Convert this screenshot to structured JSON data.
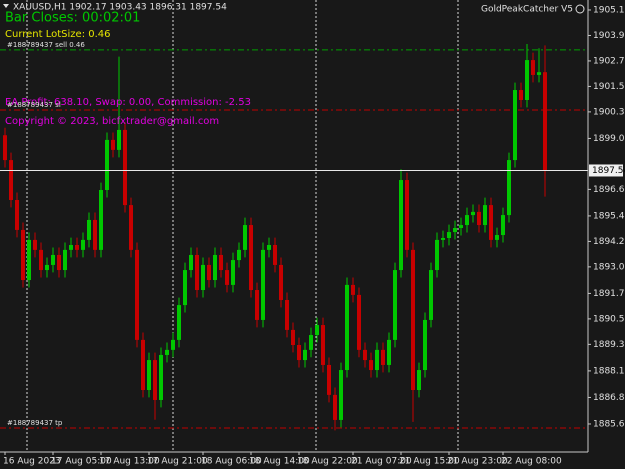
{
  "chart_data": {
    "type": "candlestick",
    "header": "XAUUSD,H1  1902.17 1903.43 1896.31 1897.54",
    "expert": "GoldPeakCatcher V5",
    "bar_closes": "Bar Closes: 00:02:01",
    "lot_size": "Current LotSize: 0.46",
    "profit": "EA Profit: 638.10, Swap: 0.00, Commission: -2.53",
    "copyright": "Copyright © 2023, bicfxtrader@gmail.com",
    "up_color": "#00c800",
    "down_color": "#c80000",
    "ylim": [
      1884.28,
      1905.57
    ],
    "yticks": [
      1905.1,
      1903.9,
      1902.7,
      1901.5,
      1900.3,
      {
        "value": 1899.05,
        "label": "1899.05"
      },
      {
        "value": 1896.65,
        "label": "1896.65"
      },
      1895.4,
      1894.2,
      {
        "value": 1893.0,
        "label": "1893.00"
      },
      {
        "value": 1891.75,
        "label": "1891.75"
      },
      {
        "value": 1890.55,
        "label": "1890.55"
      },
      {
        "value": 1889.35,
        "label": "1889.35"
      },
      1888.1,
      {
        "value": 1886.85,
        "label": "1886.85"
      },
      1885.6
    ],
    "xticks": [
      {
        "value": 0,
        "label": "16 Aug 2023"
      },
      {
        "value": 8,
        "label": "17 Aug 05:00"
      },
      {
        "value": 16,
        "label": "17 Aug 13:00"
      },
      {
        "value": 24,
        "label": "17 Aug 21:00"
      },
      {
        "value": 33,
        "label": "18 Aug 06:00"
      },
      {
        "value": 41,
        "label": "18 Aug 14:00"
      },
      {
        "value": 49,
        "label": "18 Aug 22:00"
      },
      {
        "value": 58,
        "label": "21 Aug 07:00"
      },
      {
        "value": 66,
        "label": "21 Aug 15:00"
      },
      {
        "value": 74,
        "label": "21 Aug 23:00"
      },
      {
        "value": 83,
        "label": "22 Aug 08:00"
      }
    ],
    "last": 1897.54,
    "levels": [
      {
        "label": "#188789437 sell 0.46",
        "value": 1903.22,
        "color": "#00a000"
      },
      {
        "label": "#188789437 sl",
        "value": 1900.39,
        "color": "#c00000"
      },
      {
        "label": "#188789437 tp",
        "value": 1885.41,
        "color": "#c00000"
      }
    ],
    "open": [
      1899.2,
      1898.03,
      1896.15,
      1894.74,
      1892.38,
      1894.27,
      1893.8,
      1892.85,
      1893.09,
      1893.56,
      1892.85,
      1893.8,
      1894.03,
      1893.8,
      1894.27,
      1895.21,
      1893.8,
      1896.62,
      1898.98,
      1898.51,
      1899.45,
      1895.91,
      1893.8,
      1889.56,
      1887.2,
      1888.61,
      1886.73,
      1888.85,
      1889.09,
      1889.56,
      1891.2,
      1892.85,
      1893.56,
      1891.91,
      1893.09,
      1892.38,
      1893.56,
      1892.85,
      1892.15,
      1893.32,
      1893.8,
      1894.97,
      1891.91,
      1890.5,
      1893.8,
      1894.03,
      1893.09,
      1891.44,
      1890.03,
      1889.32,
      1888.61,
      1889.09,
      1889.79,
      1890.26,
      1888.38,
      1886.97,
      1885.79,
      1888.14,
      1892.15,
      1891.68,
      1889.09,
      1888.61,
      1888.14,
      1889.09,
      1888.38,
      1889.56,
      1892.85,
      1897.09,
      1893.8,
      1887.2,
      1888.14,
      1890.5,
      1892.85,
      1894.27,
      1894.36,
      1894.64,
      1894.83,
      1894.97,
      1895.44,
      1895.59,
      1894.97,
      1895.91,
      1894.27,
      1894.5,
      1895.44,
      1898.03,
      1901.33,
      1900.86,
      1902.74,
      1902.04,
      1902.17
    ],
    "high": [
      1899.55,
      1898.38,
      1896.5,
      1895.09,
      1894.62,
      1894.62,
      1894.15,
      1893.44,
      1893.91,
      1893.91,
      1894.15,
      1894.38,
      1894.38,
      1894.62,
      1895.56,
      1895.56,
      1896.97,
      1899.33,
      1899.33,
      1902.9,
      1899.8,
      1896.26,
      1894.15,
      1889.91,
      1888.96,
      1888.96,
      1889.2,
      1889.44,
      1889.91,
      1891.55,
      1893.2,
      1893.91,
      1893.91,
      1893.44,
      1893.44,
      1893.91,
      1893.91,
      1893.2,
      1893.67,
      1894.15,
      1895.32,
      1895.32,
      1892.26,
      1894.15,
      1894.38,
      1894.38,
      1893.44,
      1891.79,
      1890.38,
      1889.67,
      1889.44,
      1890.14,
      1890.61,
      1890.61,
      1888.73,
      1887.32,
      1888.49,
      1892.5,
      1892.5,
      1892.03,
      1889.44,
      1888.96,
      1889.44,
      1889.44,
      1889.91,
      1893.2,
      1897.6,
      1897.44,
      1894.15,
      1888.49,
      1890.85,
      1893.2,
      1894.62,
      1894.71,
      1894.99,
      1895.18,
      1895.32,
      1895.79,
      1895.94,
      1895.94,
      1896.26,
      1896.26,
      1894.85,
      1895.79,
      1898.38,
      1901.68,
      1901.68,
      1903.5,
      1903.09,
      1903.3,
      1903.43
    ],
    "low": [
      1897.68,
      1895.8,
      1894.39,
      1892.03,
      1892.03,
      1893.45,
      1892.5,
      1892.5,
      1892.74,
      1892.5,
      1892.5,
      1893.45,
      1893.45,
      1893.45,
      1893.92,
      1893.45,
      1893.45,
      1896.27,
      1898.16,
      1898.16,
      1895.56,
      1893.45,
      1889.21,
      1886.85,
      1886.85,
      1885.8,
      1886.38,
      1888.5,
      1888.74,
      1889.21,
      1890.85,
      1892.5,
      1891.56,
      1891.56,
      1892.03,
      1892.03,
      1892.5,
      1891.8,
      1891.8,
      1892.97,
      1893.45,
      1891.56,
      1890.15,
      1890.15,
      1893.45,
      1892.74,
      1891.09,
      1889.68,
      1888.97,
      1888.26,
      1888.26,
      1888.74,
      1889.44,
      1888.03,
      1886.62,
      1885.3,
      1885.44,
      1887.79,
      1891.33,
      1888.74,
      1888.26,
      1887.79,
      1887.79,
      1888.03,
      1888.03,
      1889.21,
      1892.5,
      1893.45,
      1885.7,
      1886.85,
      1887.79,
      1890.15,
      1892.5,
      1893.92,
      1894.01,
      1894.29,
      1894.48,
      1894.62,
      1895.09,
      1894.62,
      1894.62,
      1893.92,
      1893.92,
      1894.15,
      1895.09,
      1897.68,
      1900.51,
      1900.51,
      1901.69,
      1901.69,
      1896.31
    ],
    "close": [
      1898.03,
      1896.15,
      1894.74,
      1892.38,
      1894.27,
      1893.8,
      1892.85,
      1893.09,
      1893.56,
      1892.85,
      1893.8,
      1894.03,
      1893.8,
      1894.27,
      1895.21,
      1893.8,
      1896.62,
      1898.98,
      1898.51,
      1899.45,
      1895.91,
      1893.8,
      1889.56,
      1887.2,
      1888.61,
      1886.73,
      1888.85,
      1889.09,
      1889.56,
      1891.2,
      1892.85,
      1893.56,
      1891.91,
      1893.09,
      1892.38,
      1893.56,
      1892.85,
      1892.15,
      1893.32,
      1893.8,
      1894.97,
      1891.91,
      1890.5,
      1893.8,
      1894.03,
      1893.09,
      1891.44,
      1890.03,
      1889.32,
      1888.61,
      1889.09,
      1889.79,
      1890.26,
      1888.38,
      1886.97,
      1885.79,
      1888.14,
      1892.15,
      1891.68,
      1889.09,
      1888.61,
      1888.14,
      1889.09,
      1888.38,
      1889.56,
      1892.85,
      1897.09,
      1893.8,
      1887.2,
      1888.14,
      1890.5,
      1892.85,
      1894.27,
      1894.36,
      1894.64,
      1894.83,
      1894.97,
      1895.44,
      1895.59,
      1894.97,
      1895.91,
      1894.27,
      1894.5,
      1895.44,
      1898.03,
      1901.33,
      1900.86,
      1902.74,
      1902.04,
      1902.17,
      1897.54
    ]
  }
}
